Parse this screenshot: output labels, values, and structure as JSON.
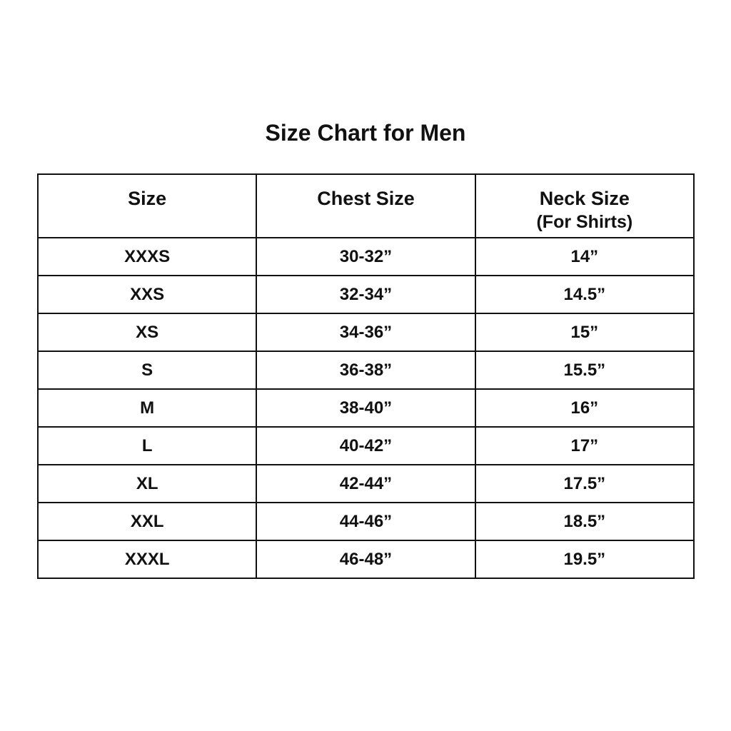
{
  "title": "Size Chart for Men",
  "table": {
    "headers": [
      {
        "label": "Size",
        "sub": ""
      },
      {
        "label": "Chest Size",
        "sub": ""
      },
      {
        "label": "Neck Size",
        "sub": "(For Shirts)"
      }
    ],
    "rows": [
      [
        "XXXS",
        "30-32”",
        "14”"
      ],
      [
        "XXS",
        "32-34”",
        "14.5”"
      ],
      [
        "XS",
        "34-36”",
        "15”"
      ],
      [
        "S",
        "36-38”",
        "15.5”"
      ],
      [
        "M",
        "38-40”",
        "16”"
      ],
      [
        "L",
        "40-42”",
        "17”"
      ],
      [
        "XL",
        "42-44”",
        "17.5”"
      ],
      [
        "XXL",
        "44-46”",
        "18.5”"
      ],
      [
        "XXXL",
        "46-48”",
        "19.5”"
      ]
    ]
  }
}
